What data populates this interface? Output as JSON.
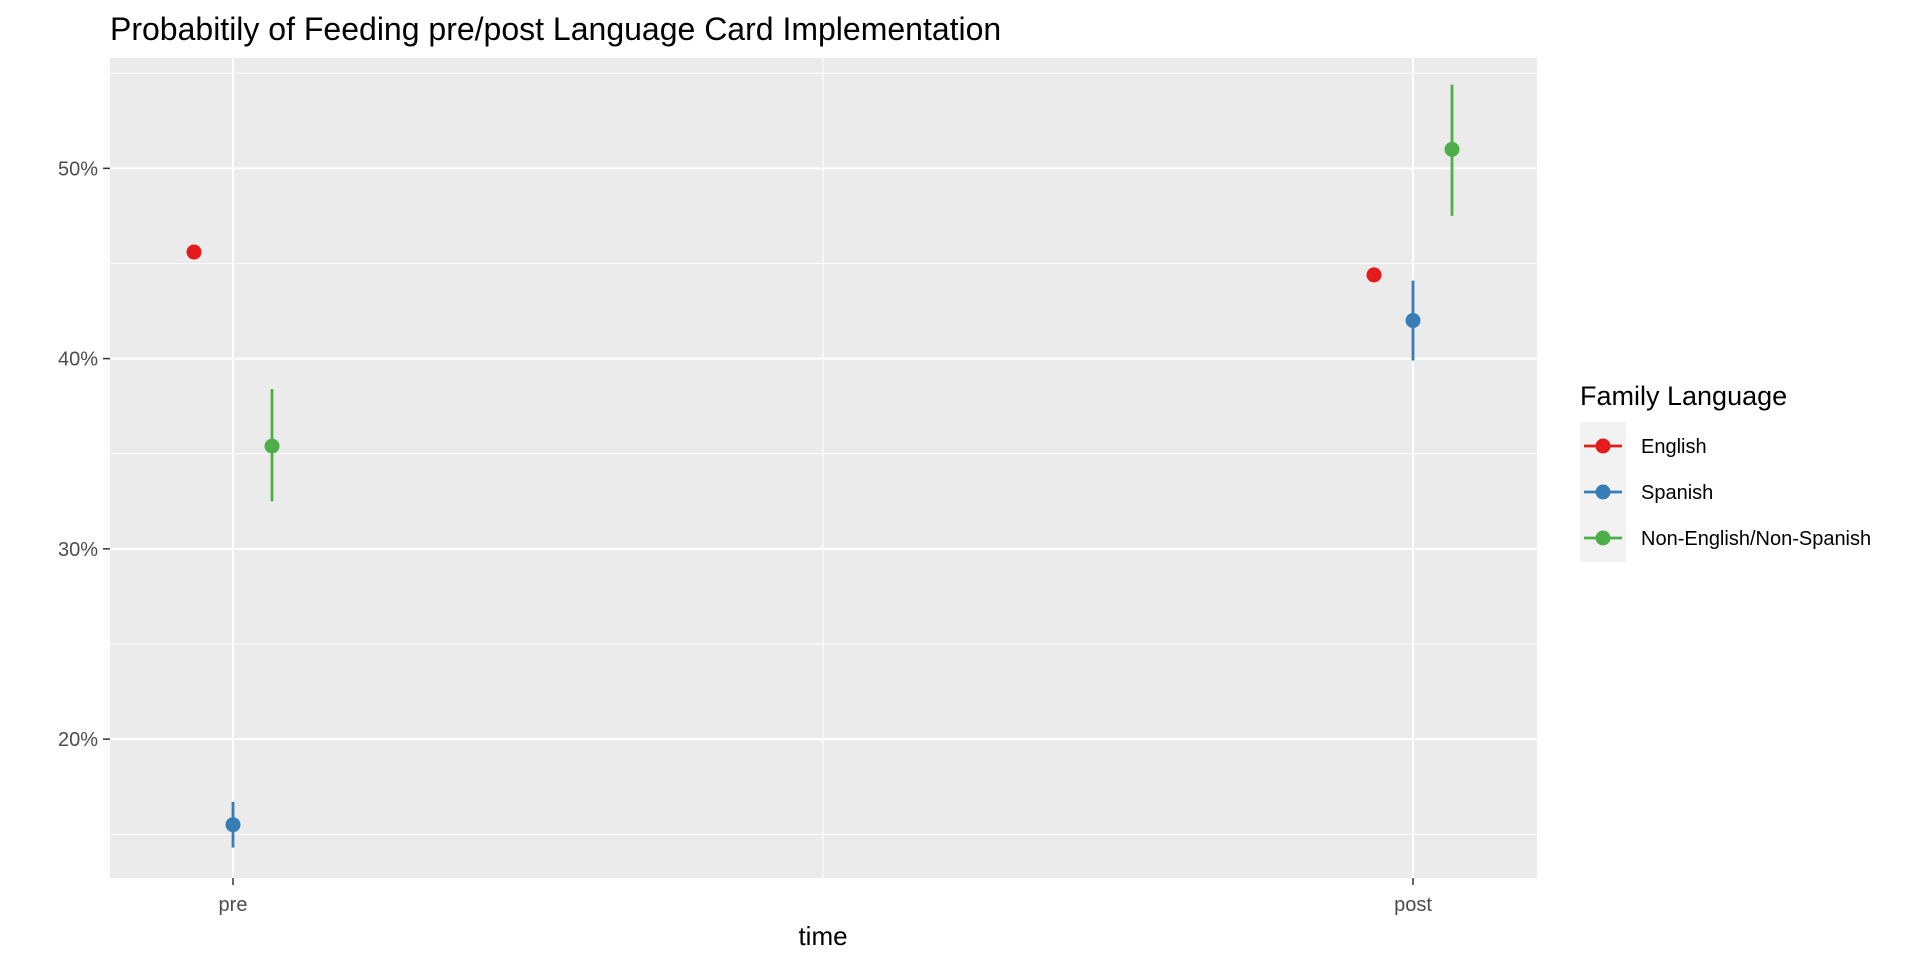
{
  "chart_data": {
    "type": "scatter",
    "title": "Probabitily of Feeding pre/post Language Card Implementation",
    "xlabel": "time",
    "ylabel": "",
    "categories": [
      "pre",
      "post"
    ],
    "y_tick_labels": [
      "20%",
      "30%",
      "40%",
      "50%"
    ],
    "y_ticks": [
      0.2,
      0.3,
      0.4,
      0.5
    ],
    "ylim": [
      0.127,
      0.558
    ],
    "grid": true,
    "panel_background": "#ebebeb",
    "legend": {
      "title": "Family Language",
      "position": "right",
      "background": "#f2f2f2"
    },
    "series": [
      {
        "name": "English",
        "color": "#e41a1c",
        "values": [
          0.456,
          0.444
        ],
        "lower": [
          0.456,
          0.444
        ],
        "upper": [
          0.456,
          0.444
        ]
      },
      {
        "name": "Spanish",
        "color": "#377eb8",
        "values": [
          0.155,
          0.42
        ],
        "lower": [
          0.143,
          0.399
        ],
        "upper": [
          0.167,
          0.441
        ]
      },
      {
        "name": "Non-English/Non-Spanish",
        "color": "#4daf4a",
        "values": [
          0.354,
          0.51
        ],
        "lower": [
          0.325,
          0.475
        ],
        "upper": [
          0.384,
          0.544
        ]
      }
    ]
  }
}
